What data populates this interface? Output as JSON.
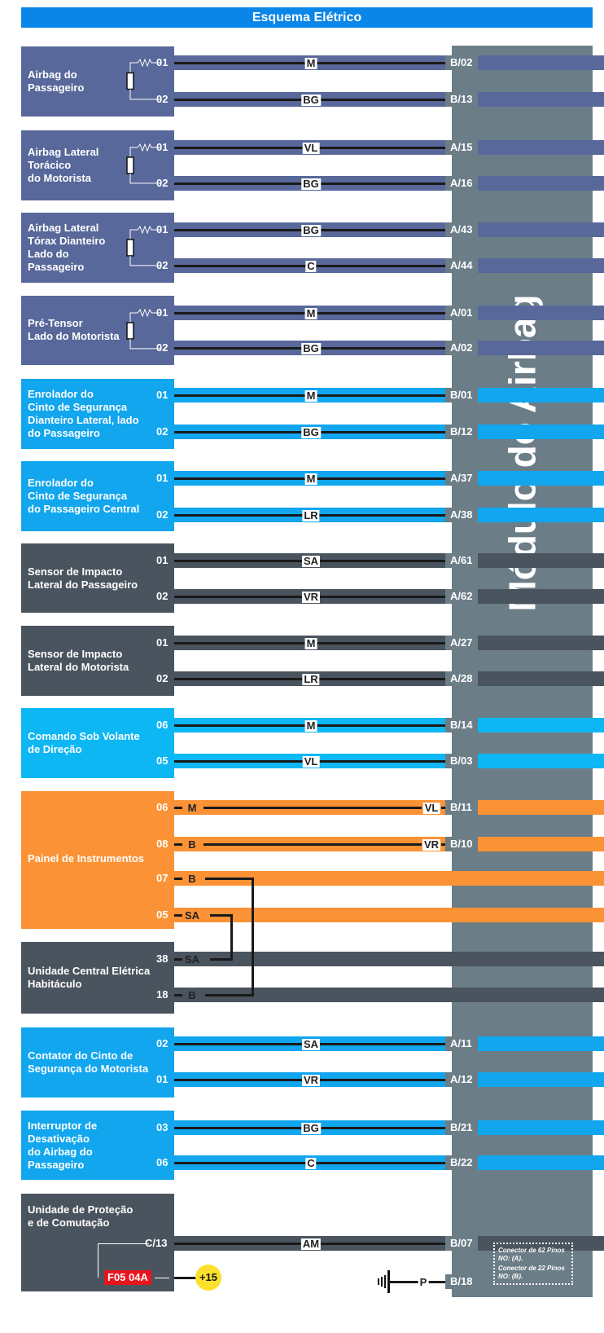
{
  "title": "Esquema Elétrico",
  "module": {
    "title": "Módulo do Airbag",
    "color": "#6b7d87"
  },
  "note": {
    "line1": "Conector de 62 Pinos",
    "line2": "NO: (A).",
    "line3": "Conector de 22 Pinos",
    "line4": "NO: (B)."
  },
  "components": [
    {
      "name": "Airbag do Passageiro",
      "lines": [
        "Airbag do",
        "Passageiro"
      ],
      "pins": [
        "01",
        "02"
      ],
      "wires": [
        "M",
        "BG"
      ],
      "module_pins": [
        "B/02",
        "B/13"
      ]
    },
    {
      "name": "Airbag Lateral Torácico do Motorista",
      "lines": [
        "Airbag Lateral",
        "Torácico",
        "do Motorista"
      ],
      "pins": [
        "01",
        "02"
      ],
      "wires": [
        "VL",
        "BG"
      ],
      "module_pins": [
        "A/15",
        "A/16"
      ]
    },
    {
      "name": "Airbag Lateral Tórax Dianteiro Lado do Passageiro",
      "lines": [
        "Airbag Lateral",
        "Tórax Dianteiro",
        " Lado do",
        "Passageiro"
      ],
      "pins": [
        "01",
        "02"
      ],
      "wires": [
        "BG",
        "C"
      ],
      "module_pins": [
        "A/43",
        "A/44"
      ]
    },
    {
      "name": "Pré-Tensor Lado do Motorista",
      "lines": [
        "Pré-Tensor",
        "Lado do Motorista"
      ],
      "pins": [
        "01",
        "02"
      ],
      "wires": [
        "M",
        "BG"
      ],
      "module_pins": [
        "A/01",
        "A/02"
      ]
    },
    {
      "name": "Enrolador do Cinto de Segurança Dianteiro Lateral, lado do Passageiro",
      "lines": [
        "Enrolador do",
        "Cinto de Segurança",
        "Dianteiro Lateral, lado",
        "do Passageiro"
      ],
      "pins": [
        "01",
        "02"
      ],
      "wires": [
        "M",
        "BG"
      ],
      "module_pins": [
        "B/01",
        "B/12"
      ]
    },
    {
      "name": "Enrolador do Cinto de Segurança do Passageiro Central",
      "lines": [
        "Enrolador do",
        "Cinto de Segurança",
        "do Passageiro Central"
      ],
      "pins": [
        "01",
        "02"
      ],
      "wires": [
        "M",
        "LR"
      ],
      "module_pins": [
        "A/37",
        "A/38"
      ]
    },
    {
      "name": "Sensor de Impacto Lateral do Passageiro",
      "lines": [
        "Sensor de Impacto",
        "Lateral do Passageiro"
      ],
      "pins": [
        "01",
        "02"
      ],
      "wires": [
        "SA",
        "VR"
      ],
      "module_pins": [
        "A/61",
        "A/62"
      ]
    },
    {
      "name": "Sensor de Impacto Lateral do Motorista",
      "lines": [
        "Sensor de Impacto",
        "Lateral do Motorista"
      ],
      "pins": [
        "01",
        "02"
      ],
      "wires": [
        "M",
        "LR"
      ],
      "module_pins": [
        "A/27",
        "A/28"
      ]
    },
    {
      "name": "Comando Sob Volante de Direção",
      "lines": [
        "Comando Sob Volante",
        "de Direção"
      ],
      "pins": [
        "06",
        "05"
      ],
      "wires": [
        "M",
        "VL"
      ],
      "module_pins": [
        "B/14",
        "B/03"
      ]
    },
    {
      "name": "Painel de Instrumentos",
      "lines": [
        "Painel de Instrumentos"
      ],
      "pins": [
        "06",
        "08",
        "07",
        "05"
      ],
      "wires_left": [
        "M",
        "B",
        "B",
        "SA"
      ],
      "wires_right": [
        "VL",
        "VR"
      ],
      "module_pins": [
        "B/11",
        "B/10"
      ]
    },
    {
      "name": "Unidade Central Elétrica Habitáculo",
      "lines": [
        "Unidade Central Elétrica",
        "Habitáculo"
      ],
      "pins": [
        "38",
        "18"
      ],
      "wires": [
        "SA",
        "B"
      ]
    },
    {
      "name": "Contator do Cinto de Segurança do Motorista",
      "lines": [
        "Contator do Cinto de",
        "Segurança do Motorista"
      ],
      "pins": [
        "02",
        "01"
      ],
      "wires": [
        "SA",
        "VR"
      ],
      "module_pins": [
        "A/11",
        "A/12"
      ]
    },
    {
      "name": "Interruptor de Desativação do Airbag do Passageiro",
      "lines": [
        "Interruptor de",
        "Desativação",
        "do Airbag do",
        "Passageiro"
      ],
      "pins": [
        "03",
        "06"
      ],
      "wires": [
        "BG",
        "C"
      ],
      "module_pins": [
        "B/21",
        "B/22"
      ]
    },
    {
      "name": "Unidade de Proteção e de Comutação",
      "lines": [
        "Unidade de Proteção",
        "e de Comutação"
      ],
      "pins": [
        "C/13"
      ],
      "wires": [
        "AM"
      ],
      "module_pins": [
        "B/07"
      ],
      "fuse": "F05  04A",
      "supply": "+15"
    }
  ],
  "ground": {
    "wire": "P",
    "module_pin": "B/18"
  }
}
